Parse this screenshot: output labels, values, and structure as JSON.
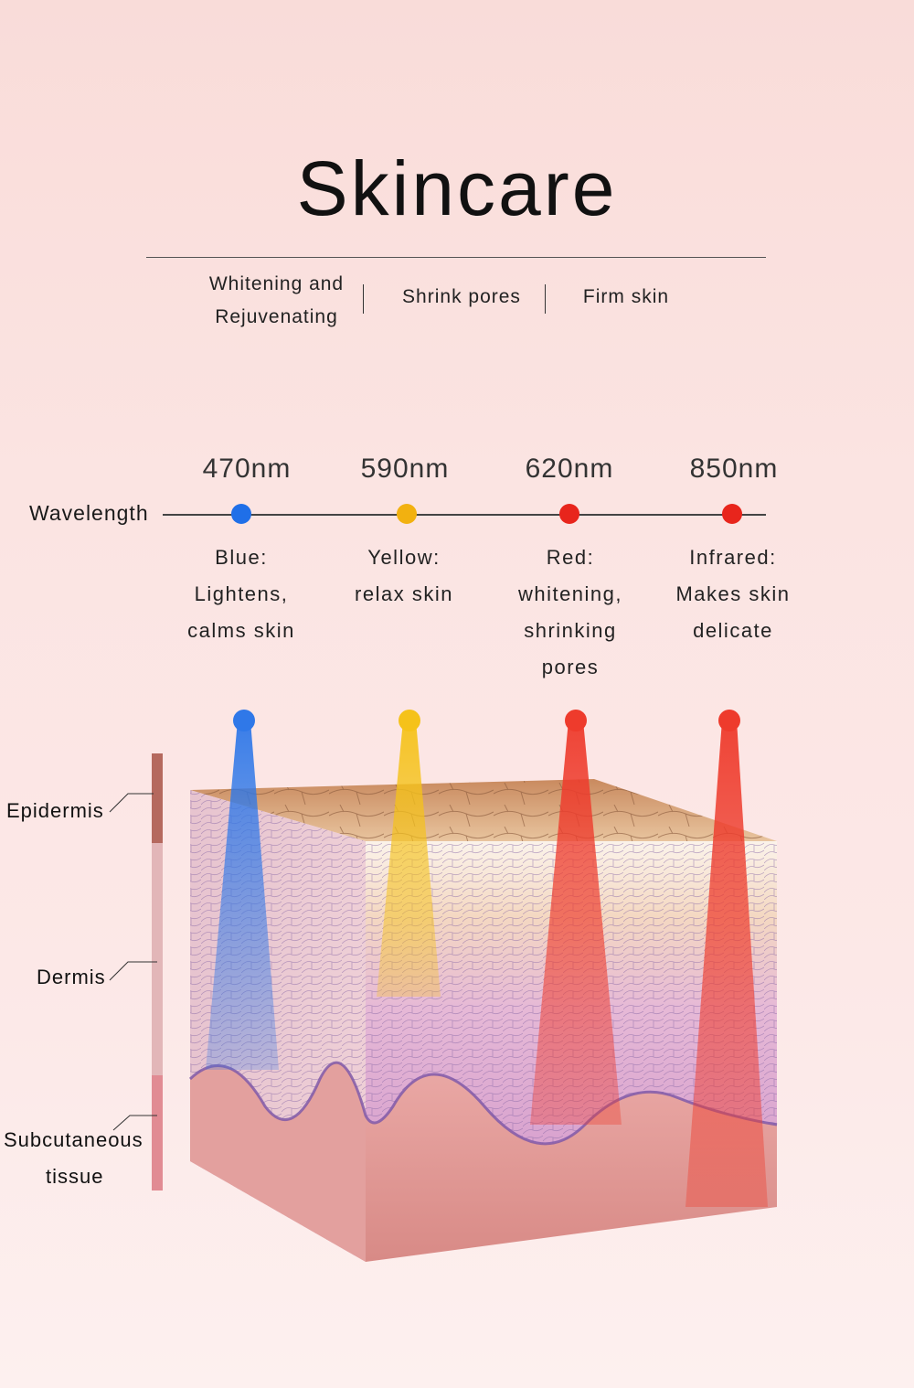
{
  "title": "Skincare",
  "benefits": [
    "Whitening and",
    "Rejuvenating",
    "Shrink pores",
    "Firm skin"
  ],
  "wavelength_label": "Wavelength",
  "wavelengths": [
    {
      "nm": "470nm",
      "color": "#1f6fe8",
      "desc": [
        "Blue:",
        "Lightens,",
        "calms skin"
      ]
    },
    {
      "nm": "590nm",
      "color": "#f2b110",
      "desc": [
        "Yellow:",
        "relax skin"
      ]
    },
    {
      "nm": "620nm",
      "color": "#e8251c",
      "desc": [
        "Red:",
        "whitening,",
        "shrinking",
        "pores"
      ]
    },
    {
      "nm": "850nm",
      "color": "#e8251c",
      "desc": [
        "Infrared:",
        "Makes skin",
        "delicate"
      ]
    }
  ],
  "layers": [
    "Epidermis",
    "Dermis",
    "Subcutaneous",
    "tissue"
  ],
  "layer_colors": [
    "#b5695e",
    "#e2b6b8",
    "#e18b93"
  ]
}
